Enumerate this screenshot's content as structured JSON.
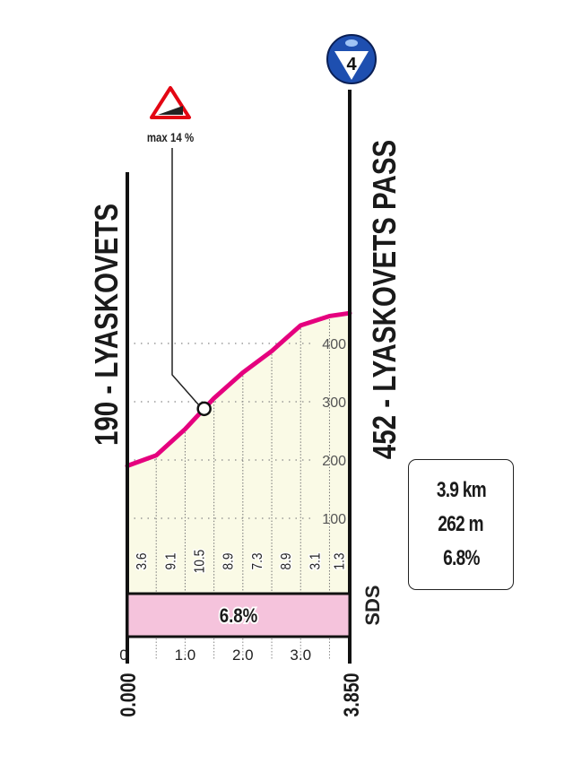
{
  "chart_data": {
    "type": "area",
    "start": {
      "name": "190 - LYASKOVETS",
      "km_label": "0.000"
    },
    "finish": {
      "name": "452 - LYASKOVETS PASS",
      "km_label": "3.850"
    },
    "climb_category": "4",
    "max_gradient_label": "max 14 %",
    "max_gradient_km": 1.33,
    "x_range_km": [
      0,
      3.85
    ],
    "y_range_m": [
      0,
      480
    ],
    "x_ticks": [
      {
        "v": 0,
        "label": "0"
      },
      {
        "v": 1,
        "label": "1.0"
      },
      {
        "v": 2,
        "label": "2.0"
      },
      {
        "v": 3,
        "label": "3.0"
      }
    ],
    "y_ticks": [
      {
        "v": 100,
        "label": "100"
      },
      {
        "v": 200,
        "label": "200"
      },
      {
        "v": 300,
        "label": "300"
      },
      {
        "v": 400,
        "label": "400"
      }
    ],
    "profile": {
      "km": [
        0,
        0.5,
        1.0,
        1.5,
        2.0,
        2.5,
        3.0,
        3.5,
        3.85
      ],
      "elevation_m": [
        190,
        208,
        253,
        306,
        350,
        387,
        431,
        447,
        452
      ]
    },
    "segment_gradients": {
      "km_start": [
        0,
        0.5,
        1.0,
        1.5,
        2.0,
        2.5,
        3.0,
        3.5
      ],
      "labels": [
        "3.6",
        "9.1",
        "10.5",
        "8.9",
        "7.3",
        "8.9",
        "3.1",
        "1.3"
      ]
    },
    "average_band_label": "6.8%",
    "colors": {
      "profile_line": "#e5007e",
      "fill": "#fafae6",
      "band": "#f5c3dc",
      "category_badge": "#1e4fb0",
      "warning": "#e30613"
    }
  },
  "summary": {
    "distance": "3.9 km",
    "elevation_gain": "262 m",
    "avg_gradient": "6.8%"
  },
  "logo": "SDS"
}
